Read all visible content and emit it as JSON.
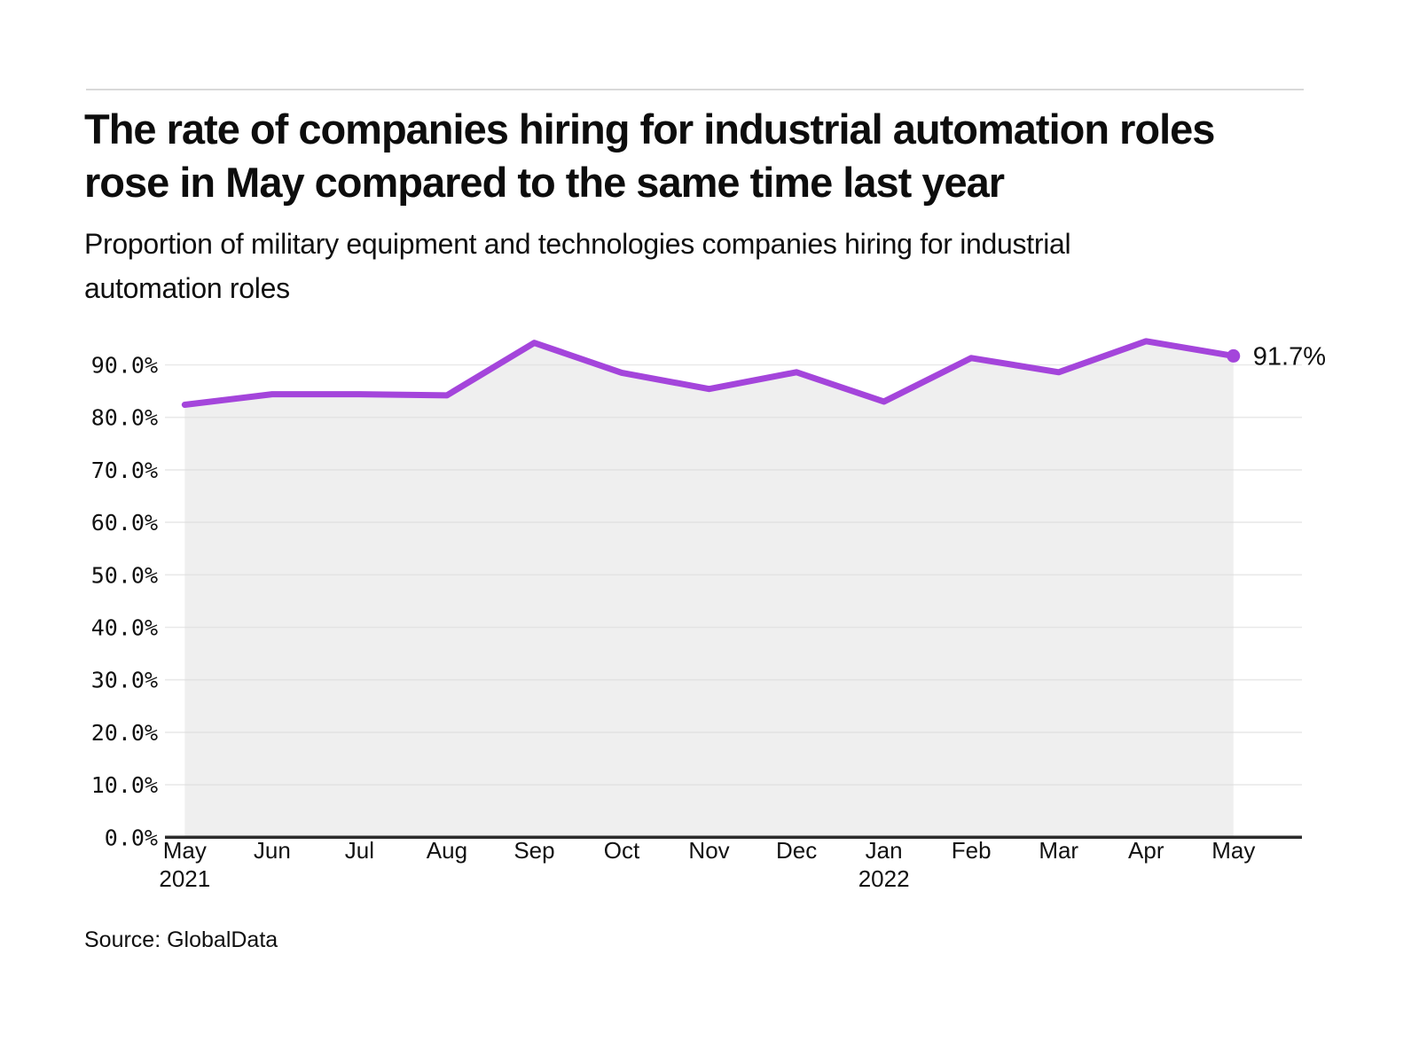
{
  "page": {
    "title": "The rate of companies hiring for industrial automation roles rose in May compared to the same time last year",
    "subtitle": "Proportion of military equipment and technologies companies hiring for industrial automation roles",
    "source": "Source: GlobalData"
  },
  "colors": {
    "line": "#A445DB",
    "area_fill": "#EFEFEF",
    "grid": "#DCDCDC",
    "axis": "#2B2B2B",
    "text": "#111111",
    "rule": "#D9D9D9"
  },
  "chart_data": {
    "type": "area",
    "title": "Proportion of military equipment and technologies companies hiring for industrial automation roles",
    "categories": [
      {
        "label": "May",
        "sublabel": "2021"
      },
      {
        "label": "Jun"
      },
      {
        "label": "Jul"
      },
      {
        "label": "Aug"
      },
      {
        "label": "Sep"
      },
      {
        "label": "Oct"
      },
      {
        "label": "Nov"
      },
      {
        "label": "Dec"
      },
      {
        "label": "Jan",
        "sublabel": "2022"
      },
      {
        "label": "Feb"
      },
      {
        "label": "Mar"
      },
      {
        "label": "Apr"
      },
      {
        "label": "May"
      }
    ],
    "values": [
      82.4,
      84.4,
      84.4,
      84.2,
      94.2,
      88.5,
      85.4,
      88.6,
      83.0,
      91.3,
      88.6,
      94.5,
      91.7
    ],
    "unit": "%",
    "ylim": [
      0,
      100
    ],
    "ytick_step": 10,
    "ytick_labels": [
      "0.0%",
      "10.0%",
      "20.0%",
      "30.0%",
      "40.0%",
      "50.0%",
      "60.0%",
      "70.0%",
      "80.0%",
      "90.0%"
    ],
    "last_point_label": "91.7%",
    "grid": true,
    "legend": "none",
    "xlabel": "",
    "ylabel": ""
  }
}
